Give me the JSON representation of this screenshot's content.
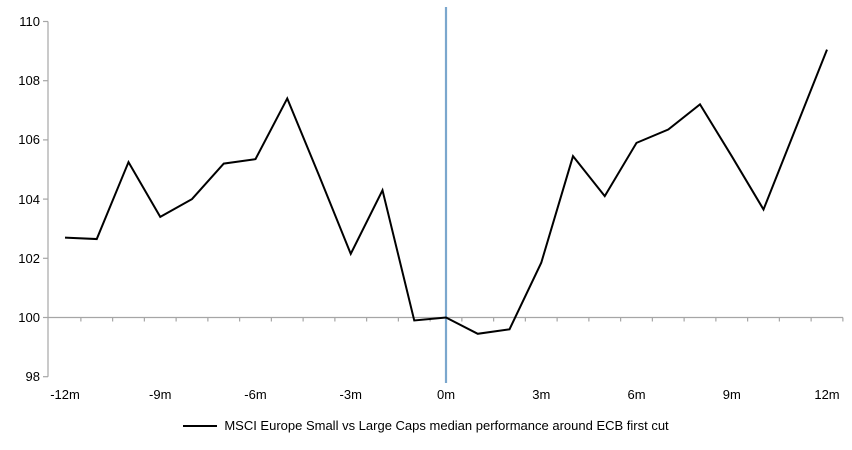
{
  "chart_data": {
    "type": "line",
    "title": "",
    "legend": "MSCI Europe Small vs Large Caps median performance around ECB first cut",
    "legend_position": "bottom",
    "grid": "off",
    "x": [
      -12,
      -11,
      -10,
      -9,
      -8,
      -7,
      -6,
      -5,
      -4,
      -3,
      -2,
      -1,
      0,
      1,
      2,
      3,
      4,
      5,
      6,
      7,
      8,
      9,
      10,
      11,
      12
    ],
    "values": [
      102.7,
      102.65,
      105.25,
      103.4,
      104.0,
      105.2,
      105.35,
      107.4,
      104.8,
      102.15,
      104.3,
      99.9,
      100.0,
      99.45,
      99.6,
      101.85,
      105.45,
      104.1,
      105.9,
      106.35,
      107.2,
      105.45,
      103.65,
      106.35,
      109.05
    ],
    "xlabel": "",
    "ylabel": "",
    "ylim": [
      98,
      110
    ],
    "xlim": [
      -12,
      12
    ],
    "y_tick_labels": [
      "110",
      "108",
      "106",
      "104",
      "102",
      "100",
      "98"
    ],
    "x_tick_labels": [
      "-12m",
      "-9m",
      "-6m",
      "-3m",
      "0m",
      "3m",
      "6m",
      "9m",
      "12m"
    ],
    "baseline_value": 100,
    "event_line_x": 0,
    "colors": {
      "series": "#000000",
      "event_line": "#7BA7CD",
      "axis": "#A6A6A6",
      "text": "#000000"
    }
  }
}
